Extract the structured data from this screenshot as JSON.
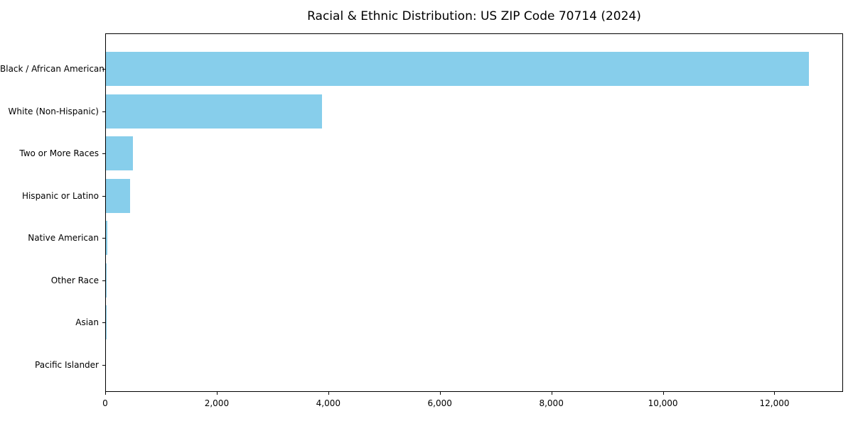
{
  "chart_data": {
    "type": "bar",
    "orientation": "horizontal",
    "title": "Racial & Ethnic Distribution: US ZIP Code 70714 (2024)",
    "categories": [
      "Black / African American",
      "White (Non-Hispanic)",
      "Two or More Races",
      "Hispanic or Latino",
      "Native American",
      "Other Race",
      "Asian",
      "Pacific Islander"
    ],
    "values": [
      12600,
      3880,
      480,
      430,
      25,
      15,
      5,
      0
    ],
    "xlabel": "",
    "ylabel": "",
    "xlim": [
      0,
      13230
    ],
    "x_ticks": [
      0,
      2000,
      4000,
      6000,
      8000,
      10000,
      12000
    ],
    "x_tick_labels": [
      "0",
      "2,000",
      "4,000",
      "6,000",
      "8,000",
      "10,000",
      "12,000"
    ],
    "bar_color": "#87CEEB",
    "background_color": "#ffffff",
    "frame_color": "#000000",
    "grid": false,
    "legend": null
  }
}
